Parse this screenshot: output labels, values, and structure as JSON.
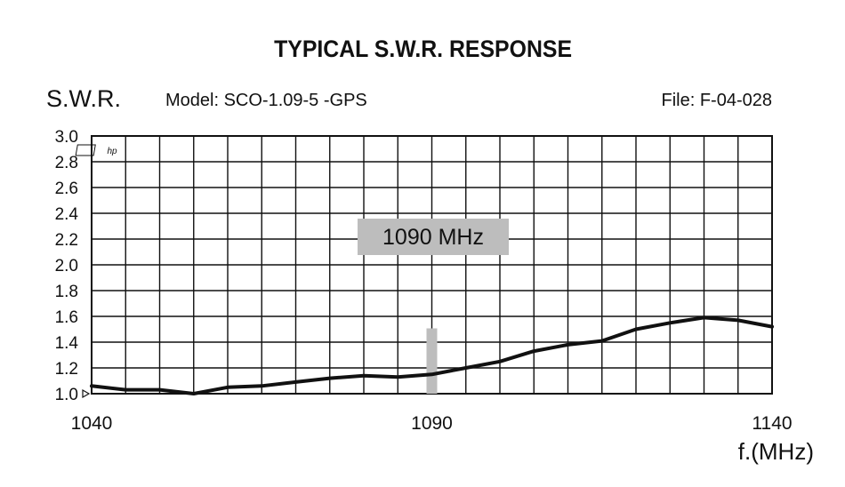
{
  "chart_data": {
    "type": "line",
    "title": "TYPICAL S.W.R. RESPONSE",
    "ylabel": "S.W.R.",
    "xlabel": "f.(MHz)",
    "model": "Model: SCO-1.09-5 -GPS",
    "file": "File:  F-04-028",
    "logo": "hp",
    "xlim": [
      1040,
      1140
    ],
    "ylim": [
      1.0,
      3.0
    ],
    "x_ticks": [
      "1040",
      "1090",
      "1140"
    ],
    "x_tick_values": [
      1040,
      1090,
      1140
    ],
    "y_ticks": [
      "3.0",
      "2.8",
      "2.6",
      "2.4",
      "2.2",
      "2.0",
      "1.8",
      "1.6",
      "1.4",
      "1.2",
      "1.0"
    ],
    "y_tick_values": [
      3.0,
      2.8,
      2.6,
      2.4,
      2.2,
      2.0,
      1.8,
      1.6,
      1.4,
      1.2,
      1.0
    ],
    "grid": true,
    "marker": {
      "x": 1090,
      "y_range": [
        1.0,
        1.5
      ],
      "label": "1090 MHz",
      "color": "#bdbdbd"
    },
    "series": [
      {
        "color": "#111111",
        "x": [
          1040,
          1045,
          1050,
          1055,
          1060,
          1065,
          1070,
          1075,
          1080,
          1085,
          1090,
          1095,
          1100,
          1105,
          1110,
          1115,
          1120,
          1125,
          1130,
          1135,
          1140
        ],
        "y": [
          1.06,
          1.03,
          1.03,
          1.0,
          1.05,
          1.06,
          1.09,
          1.12,
          1.14,
          1.13,
          1.15,
          1.2,
          1.25,
          1.33,
          1.38,
          1.41,
          1.5,
          1.55,
          1.59,
          1.57,
          1.52
        ]
      }
    ]
  }
}
